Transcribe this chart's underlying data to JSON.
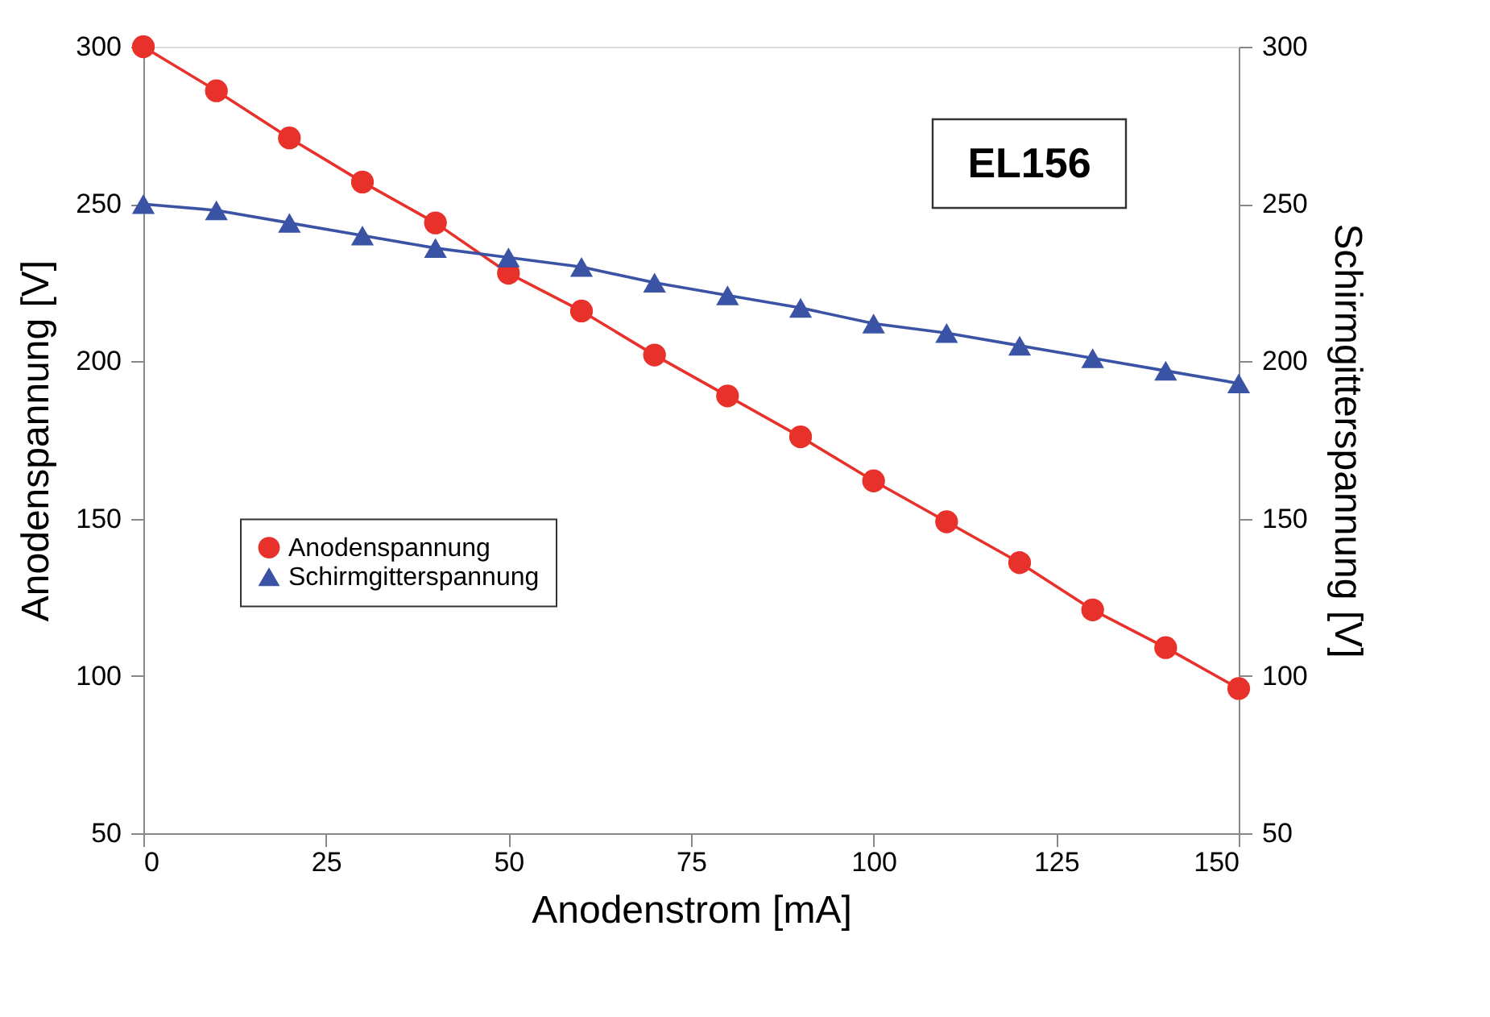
{
  "chart_data": {
    "type": "line",
    "xlabel": "Anodenstrom [mA]",
    "ylabel": "Anodenspannung [V]",
    "y2label": "Schirmgitterspannung [V]",
    "x": [
      0,
      10,
      20,
      30,
      40,
      50,
      60,
      70,
      80,
      90,
      100,
      110,
      120,
      130,
      140,
      150
    ],
    "series": [
      {
        "name": "Anodenspannung",
        "color": "#e8312a",
        "marker": "circle",
        "values": [
          300,
          286,
          271,
          257,
          244,
          228,
          216,
          202,
          189,
          176,
          162,
          149,
          136,
          121,
          109,
          96
        ]
      },
      {
        "name": "Schirmgitterspannung",
        "color": "#3a53a4",
        "marker": "triangle",
        "axis": "y2",
        "values": [
          250,
          248,
          244,
          240,
          236,
          233,
          230,
          225,
          221,
          217,
          212,
          209,
          205,
          201,
          197,
          193
        ]
      }
    ],
    "xlim": [
      0,
      150
    ],
    "xticks": [
      0,
      25,
      50,
      75,
      100,
      125,
      150
    ],
    "ylim": [
      50,
      300
    ],
    "yticks": [
      50,
      100,
      150,
      200,
      250,
      300
    ],
    "y2lim": [
      50,
      300
    ],
    "y2ticks": [
      50,
      100,
      150,
      200,
      250,
      300
    ],
    "grid": false,
    "legend": "left",
    "line_style": "solid",
    "annotations": [
      "EL156"
    ]
  }
}
